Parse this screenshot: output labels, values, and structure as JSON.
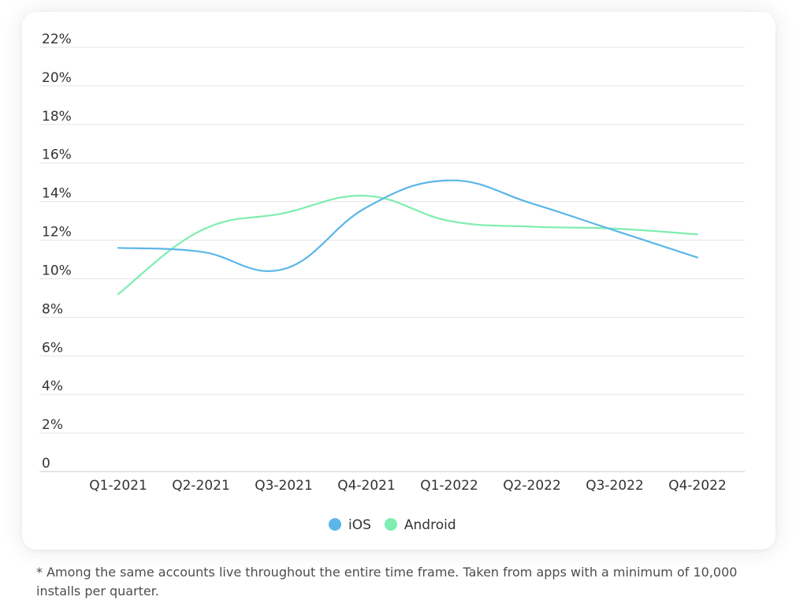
{
  "chart_data": {
    "type": "line",
    "categories": [
      "Q1-2021",
      "Q2-2021",
      "Q3-2021",
      "Q4-2021",
      "Q1-2022",
      "Q2-2022",
      "Q3-2022",
      "Q4-2022"
    ],
    "series": [
      {
        "name": "iOS",
        "color": "#5bb7e8",
        "values": [
          11.6,
          11.4,
          10.5,
          13.7,
          15.1,
          13.9,
          12.5,
          11.1
        ]
      },
      {
        "name": "Android",
        "color": "#7eedb0",
        "values": [
          9.2,
          12.5,
          13.4,
          14.3,
          13.0,
          12.7,
          12.6,
          12.3
        ]
      }
    ],
    "ylim": [
      0,
      22
    ],
    "yticks": [
      "0",
      "2%",
      "4%",
      "6%",
      "8%",
      "10%",
      "12%",
      "14%",
      "16%",
      "18%",
      "20%",
      "22%"
    ],
    "grid": true,
    "legend_position": "bottom-center"
  },
  "footnote": "* Among the same accounts live throughout the entire time frame. Taken from apps with a minimum of 10,000 installs per quarter."
}
